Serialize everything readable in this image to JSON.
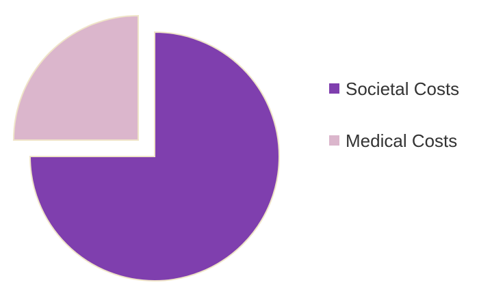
{
  "chart_data": {
    "type": "pie",
    "title": "",
    "categories": [
      "Societal Costs",
      "Medical Costs"
    ],
    "values": [
      75,
      25
    ],
    "colors": [
      "#7f3fae",
      "#dbb6cc"
    ],
    "exploded": [
      false,
      true
    ],
    "start_angle_deg": 0,
    "legend_position": "right"
  }
}
